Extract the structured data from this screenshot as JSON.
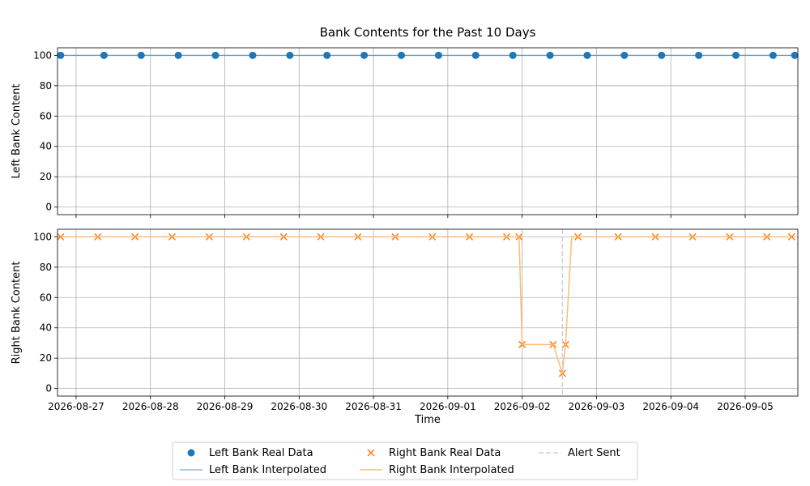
{
  "chart_data": {
    "type": "line",
    "title": "Bank Contents for the Past 10 Days",
    "xlabel": "Time",
    "x_ticks": [
      "2026-08-27",
      "2026-08-28",
      "2026-08-29",
      "2026-08-30",
      "2026-08-31",
      "2026-09-01",
      "2026-09-02",
      "2026-09-03",
      "2026-09-04",
      "2026-09-05"
    ],
    "xlim": [
      "2026-08-26T18:00",
      "2026-09-05T17:00"
    ],
    "grid": true,
    "legend": "bottom-center",
    "panels": [
      {
        "ylabel": "Left Bank Content",
        "ylim": [
          -5,
          105
        ],
        "y_ticks": [
          0,
          20,
          40,
          60,
          80,
          100
        ],
        "series": [
          {
            "name": "Left Bank Real Data",
            "marker": "circle",
            "color": "#1f77b4",
            "x": [
              "2026-08-26T19:00",
              "2026-08-27T09:00",
              "2026-08-27T21:00",
              "2026-08-28T09:00",
              "2026-08-28T21:00",
              "2026-08-29T09:00",
              "2026-08-29T21:00",
              "2026-08-30T09:00",
              "2026-08-30T21:00",
              "2026-08-31T09:00",
              "2026-08-31T21:00",
              "2026-09-01T09:00",
              "2026-09-01T21:00",
              "2026-09-02T09:00",
              "2026-09-02T21:00",
              "2026-09-03T09:00",
              "2026-09-03T21:00",
              "2026-09-04T09:00",
              "2026-09-04T21:00",
              "2026-09-05T09:00",
              "2026-09-05T16:00"
            ],
            "values": [
              100,
              100,
              100,
              100,
              100,
              100,
              100,
              100,
              100,
              100,
              100,
              100,
              100,
              100,
              100,
              100,
              100,
              100,
              100,
              100,
              100
            ]
          },
          {
            "name": "Left Bank Interpolated",
            "marker": "line",
            "color": "#1f77b4",
            "x": [
              "2026-08-26T19:00",
              "2026-09-05T16:00"
            ],
            "values": [
              100,
              100
            ]
          }
        ]
      },
      {
        "ylabel": "Right Bank Content",
        "ylim": [
          -5,
          105
        ],
        "y_ticks": [
          0,
          20,
          40,
          60,
          80,
          100
        ],
        "series": [
          {
            "name": "Right Bank Real Data",
            "marker": "x",
            "color": "#ff7f0e",
            "x": [
              "2026-08-26T19:00",
              "2026-08-27T07:00",
              "2026-08-27T19:00",
              "2026-08-28T07:00",
              "2026-08-28T19:00",
              "2026-08-29T07:00",
              "2026-08-29T19:00",
              "2026-08-30T07:00",
              "2026-08-30T19:00",
              "2026-08-31T07:00",
              "2026-08-31T19:00",
              "2026-09-01T07:00",
              "2026-09-01T19:00",
              "2026-09-01T23:00",
              "2026-09-02T00:00",
              "2026-09-02T10:00",
              "2026-09-02T13:00",
              "2026-09-02T14:00",
              "2026-09-02T18:00",
              "2026-09-03T07:00",
              "2026-09-03T19:00",
              "2026-09-04T07:00",
              "2026-09-04T19:00",
              "2026-09-05T07:00",
              "2026-09-05T15:00"
            ],
            "values": [
              100,
              100,
              100,
              100,
              100,
              100,
              100,
              100,
              100,
              100,
              100,
              100,
              100,
              100,
              29,
              29,
              10,
              29,
              100,
              100,
              100,
              100,
              100,
              100,
              100
            ]
          },
          {
            "name": "Right Bank Interpolated",
            "marker": "line",
            "color": "#ffbb78",
            "x": [
              "2026-08-26T19:00",
              "2026-09-01T23:00",
              "2026-09-02T00:00",
              "2026-09-02T10:00",
              "2026-09-02T13:00",
              "2026-09-02T14:00",
              "2026-09-02T16:00",
              "2026-09-05T15:00"
            ],
            "values": [
              100,
              100,
              29,
              29,
              10,
              29,
              100,
              100
            ]
          },
          {
            "name": "Alert Sent",
            "marker": "vline",
            "color": "#cfcfcf",
            "x": [
              "2026-09-02T13:00"
            ]
          }
        ]
      }
    ]
  }
}
